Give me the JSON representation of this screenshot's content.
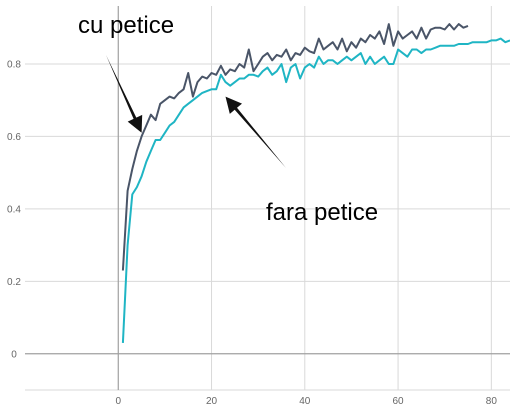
{
  "chart_data": {
    "type": "line",
    "title": "",
    "xlabel": "",
    "ylabel": "",
    "xlim": [
      -20,
      84
    ],
    "ylim": [
      -0.1,
      0.96
    ],
    "grid": true,
    "x_ticks": [
      0,
      20,
      40,
      60,
      80
    ],
    "y_ticks": [
      0,
      0.2,
      0.4,
      0.6,
      0.8
    ],
    "x_tick_labels": [
      "0",
      "20",
      "40",
      "60",
      "80"
    ],
    "y_tick_labels": [
      "0",
      "0.2",
      "0.4",
      "0.6",
      "0.8"
    ],
    "colors": {
      "series_dark": "#4a5568",
      "series_teal": "#1fb5c4",
      "grid": "#d9d9d9",
      "axis": "#a0a0a0"
    },
    "series": [
      {
        "x": [
          1,
          2,
          3,
          4,
          5,
          6,
          7,
          8,
          9,
          10,
          11,
          12,
          13,
          14,
          15,
          16,
          17,
          18,
          19,
          20,
          21,
          22,
          23,
          24,
          25,
          26,
          27,
          28,
          29,
          30,
          31,
          32,
          33,
          34,
          35,
          36,
          37,
          38,
          39,
          40,
          41,
          42,
          43,
          44,
          45,
          46,
          47,
          48,
          49,
          50,
          51,
          52,
          53,
          54,
          55,
          56,
          57,
          58,
          59,
          60,
          61,
          62,
          63,
          64,
          65,
          66,
          67,
          68,
          69,
          70,
          71,
          72,
          73,
          74,
          75
        ],
        "values": [
          0.23,
          0.45,
          0.51,
          0.56,
          0.6,
          0.63,
          0.66,
          0.645,
          0.69,
          0.7,
          0.71,
          0.705,
          0.72,
          0.73,
          0.775,
          0.71,
          0.75,
          0.765,
          0.76,
          0.775,
          0.77,
          0.795,
          0.77,
          0.785,
          0.78,
          0.8,
          0.79,
          0.84,
          0.78,
          0.8,
          0.82,
          0.83,
          0.81,
          0.825,
          0.82,
          0.84,
          0.81,
          0.83,
          0.825,
          0.845,
          0.835,
          0.83,
          0.87,
          0.84,
          0.85,
          0.86,
          0.84,
          0.87,
          0.835,
          0.86,
          0.845,
          0.87,
          0.86,
          0.88,
          0.87,
          0.89,
          0.855,
          0.91,
          0.85,
          0.89,
          0.87,
          0.88,
          0.89,
          0.87,
          0.9,
          0.87,
          0.895,
          0.9,
          0.9,
          0.895,
          0.91,
          0.895,
          0.91,
          0.9,
          0.905
        ]
      },
      {
        "x": [
          1,
          2,
          3,
          4,
          5,
          6,
          7,
          8,
          9,
          10,
          11,
          12,
          13,
          14,
          15,
          16,
          17,
          18,
          19,
          20,
          21,
          22,
          23,
          24,
          25,
          26,
          27,
          28,
          29,
          30,
          31,
          32,
          33,
          34,
          35,
          36,
          37,
          38,
          39,
          40,
          41,
          42,
          43,
          44,
          45,
          46,
          47,
          48,
          49,
          50,
          51,
          52,
          53,
          54,
          55,
          56,
          57,
          58,
          59,
          60,
          61,
          62,
          63,
          64,
          65,
          66,
          67,
          68,
          69,
          70,
          71,
          72,
          73,
          74,
          75,
          76,
          77,
          78,
          79,
          80,
          81,
          82,
          83,
          84
        ],
        "values": [
          0.03,
          0.3,
          0.44,
          0.46,
          0.49,
          0.53,
          0.56,
          0.59,
          0.59,
          0.61,
          0.63,
          0.64,
          0.66,
          0.68,
          0.69,
          0.7,
          0.71,
          0.72,
          0.725,
          0.73,
          0.73,
          0.77,
          0.75,
          0.74,
          0.75,
          0.76,
          0.76,
          0.77,
          0.77,
          0.765,
          0.78,
          0.79,
          0.77,
          0.78,
          0.8,
          0.75,
          0.79,
          0.8,
          0.76,
          0.79,
          0.8,
          0.79,
          0.82,
          0.8,
          0.81,
          0.81,
          0.8,
          0.81,
          0.82,
          0.81,
          0.82,
          0.83,
          0.8,
          0.82,
          0.8,
          0.81,
          0.82,
          0.8,
          0.8,
          0.84,
          0.83,
          0.82,
          0.84,
          0.84,
          0.83,
          0.84,
          0.84,
          0.845,
          0.85,
          0.85,
          0.85,
          0.85,
          0.855,
          0.855,
          0.855,
          0.86,
          0.86,
          0.86,
          0.86,
          0.865,
          0.865,
          0.87,
          0.86,
          0.865
        ]
      }
    ],
    "annotations": [
      {
        "text": "cu petice",
        "points_to": [
          5,
          0.61
        ]
      },
      {
        "text": "fara petice",
        "points_to": [
          23,
          0.71
        ]
      }
    ]
  }
}
